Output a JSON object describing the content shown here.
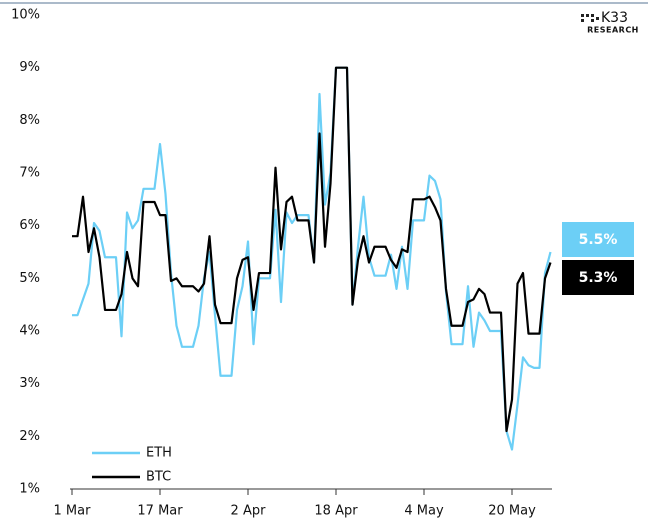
{
  "chart_data": {
    "type": "line",
    "logo": {
      "name": "K33",
      "sub": "RESEARCH"
    },
    "categories": [
      "1 Mar",
      null,
      null,
      null,
      null,
      null,
      null,
      null,
      null,
      null,
      null,
      null,
      null,
      null,
      null,
      null,
      "17 Mar",
      null,
      null,
      null,
      null,
      null,
      null,
      null,
      null,
      null,
      null,
      null,
      null,
      null,
      null,
      null,
      "2 Apr",
      null,
      null,
      null,
      null,
      null,
      null,
      null,
      null,
      null,
      null,
      null,
      null,
      null,
      null,
      null,
      "18 Apr",
      null,
      null,
      null,
      null,
      null,
      null,
      null,
      null,
      null,
      null,
      null,
      null,
      null,
      null,
      null,
      "4 May",
      null,
      null,
      null,
      null,
      null,
      null,
      null,
      null,
      null,
      null,
      null,
      null,
      null,
      null,
      null,
      "20 May",
      null,
      null,
      null,
      null,
      null,
      null,
      null
    ],
    "series": [
      {
        "name": "ETH",
        "color": "#6ccff6",
        "values": [
          4.3,
          4.3,
          4.6,
          4.9,
          6.05,
          5.9,
          5.4,
          5.4,
          5.4,
          3.9,
          6.25,
          5.95,
          6.1,
          6.7,
          6.7,
          6.7,
          7.55,
          6.6,
          5.1,
          4.1,
          3.7,
          3.7,
          3.7,
          4.1,
          5.0,
          5.5,
          4.3,
          3.15,
          3.15,
          3.15,
          4.4,
          4.85,
          5.7,
          3.75,
          5.0,
          5.0,
          5.0,
          6.3,
          4.55,
          6.25,
          6.05,
          6.2,
          6.2,
          6.2,
          5.3,
          8.5,
          6.4,
          7.0,
          9.0,
          9.0,
          9.0,
          4.5,
          5.6,
          6.55,
          5.4,
          5.05,
          5.05,
          5.05,
          5.45,
          4.8,
          5.6,
          4.8,
          6.1,
          6.1,
          6.1,
          6.95,
          6.85,
          6.5,
          4.75,
          3.75,
          3.75,
          3.75,
          4.85,
          3.7,
          4.35,
          4.2,
          4.0,
          4.0,
          4.0,
          2.1,
          1.75,
          2.6,
          3.5,
          3.35,
          3.3,
          3.3,
          5.1,
          5.5
        ],
        "value_labels": [
          null,
          null,
          null,
          null,
          null,
          null,
          null,
          null,
          null,
          null,
          null,
          null,
          null,
          null,
          null,
          null,
          null,
          null,
          null,
          null,
          null,
          null,
          null,
          null,
          null,
          null,
          null,
          null,
          null,
          null,
          null,
          null,
          null,
          null,
          null,
          null,
          null,
          null,
          null,
          null,
          null,
          null,
          null,
          null,
          null,
          null,
          null,
          null,
          null,
          null,
          null,
          null,
          null,
          null,
          null,
          null,
          null,
          null,
          null,
          null,
          null,
          null,
          null,
          null,
          null,
          null,
          null,
          null,
          null,
          null,
          null,
          null,
          null,
          null,
          null,
          null,
          null,
          null,
          null,
          null,
          null,
          null,
          null,
          null,
          null,
          null,
          null,
          "5.5%"
        ]
      },
      {
        "name": "BTC",
        "color": "#000000",
        "values": [
          5.8,
          5.8,
          6.55,
          5.5,
          5.95,
          5.4,
          4.4,
          4.4,
          4.4,
          4.7,
          5.5,
          5.0,
          4.85,
          6.45,
          6.45,
          6.45,
          6.2,
          6.2,
          4.95,
          5.0,
          4.85,
          4.85,
          4.85,
          4.75,
          4.9,
          5.8,
          4.5,
          4.15,
          4.15,
          4.15,
          5.0,
          5.35,
          5.4,
          4.4,
          5.1,
          5.1,
          5.1,
          7.1,
          5.55,
          6.45,
          6.55,
          6.1,
          6.1,
          6.1,
          5.3,
          7.75,
          5.6,
          6.8,
          9.0,
          9.0,
          9.0,
          4.5,
          5.35,
          5.8,
          5.3,
          5.6,
          5.6,
          5.6,
          5.35,
          5.2,
          5.55,
          5.5,
          6.5,
          6.5,
          6.5,
          6.55,
          6.35,
          6.1,
          4.8,
          4.1,
          4.1,
          4.1,
          4.55,
          4.6,
          4.8,
          4.7,
          4.35,
          4.35,
          4.35,
          2.1,
          2.7,
          4.9,
          5.1,
          3.95,
          3.95,
          3.95,
          5.0,
          5.3
        ],
        "value_labels": [
          null,
          null,
          null,
          null,
          null,
          null,
          null,
          null,
          null,
          null,
          null,
          null,
          null,
          null,
          null,
          null,
          null,
          null,
          null,
          null,
          null,
          null,
          null,
          null,
          null,
          null,
          null,
          null,
          null,
          null,
          null,
          null,
          null,
          null,
          null,
          null,
          null,
          null,
          null,
          null,
          null,
          null,
          null,
          null,
          null,
          null,
          null,
          null,
          null,
          null,
          null,
          null,
          null,
          null,
          null,
          null,
          null,
          null,
          null,
          null,
          null,
          null,
          null,
          null,
          null,
          null,
          null,
          null,
          null,
          null,
          null,
          null,
          null,
          null,
          null,
          null,
          null,
          null,
          null,
          null,
          null,
          null,
          null,
          null,
          null,
          null,
          null,
          "5.3%"
        ]
      }
    ],
    "ylim": [
      1,
      10
    ],
    "yticks": [
      {
        "value": 1,
        "label": "1%"
      },
      {
        "value": 2,
        "label": "2%"
      },
      {
        "value": 3,
        "label": "3%"
      },
      {
        "value": 4,
        "label": "4%"
      },
      {
        "value": 5,
        "label": "5%"
      },
      {
        "value": 6,
        "label": "6%"
      },
      {
        "value": 7,
        "label": "7%"
      },
      {
        "value": 8,
        "label": "8%"
      },
      {
        "value": 9,
        "label": "9%"
      },
      {
        "value": 10,
        "label": "10%"
      }
    ],
    "grid": false,
    "legend": "lower left"
  }
}
